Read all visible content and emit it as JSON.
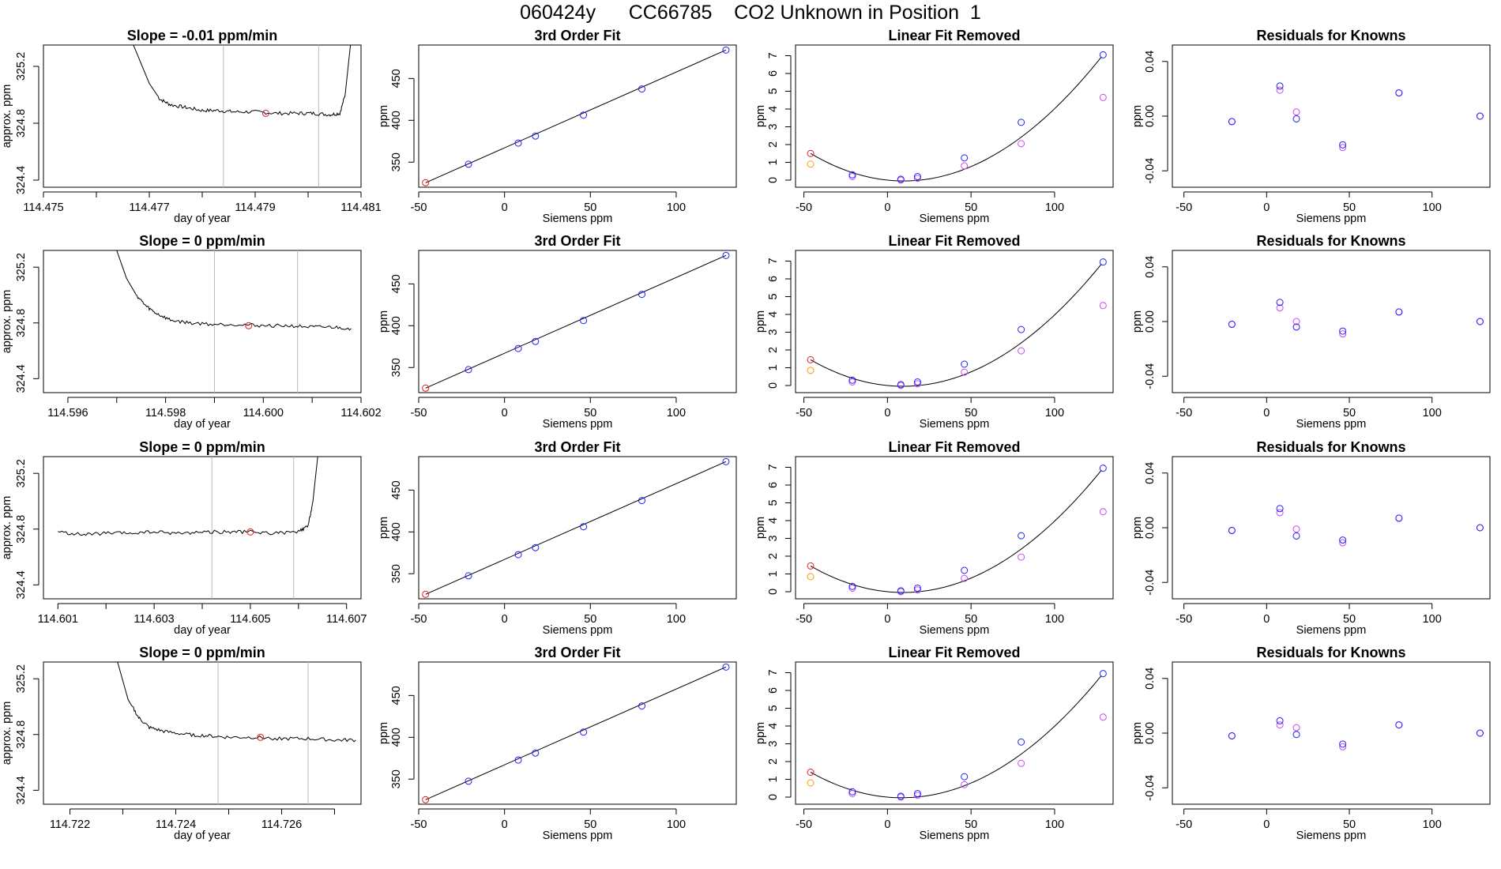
{
  "figure_title": "060424y      CC66785    CO2 Unknown in Position  1",
  "colors": {
    "line": "#000000",
    "unknown_point": "#e31a1c",
    "known_point": "#1f1fff",
    "raw_point": "#cc44ff",
    "flag_point": "#ff9900",
    "window_line": "#bbbbbb",
    "background": "#ffffff"
  },
  "chart_data": [
    {
      "type": "line",
      "row": 0,
      "col": 0,
      "title": "Slope =  -0.01  ppm/min",
      "xlabel": "day of year",
      "ylabel": "approx. ppm",
      "xlim": [
        114.475,
        114.481
      ],
      "ylim": [
        324.35,
        325.35
      ],
      "xticks": [
        114.475,
        114.476,
        114.477,
        114.478,
        114.479,
        114.48,
        114.481
      ],
      "xtick_labels": [
        "114.475",
        "",
        "114.477",
        "",
        "114.479",
        "",
        "114.481"
      ],
      "yticks": [
        324.4,
        324.8,
        325.2
      ],
      "ytick_labels": [
        "324.4",
        "324.8",
        "325.2"
      ],
      "x": [
        114.4767,
        114.477,
        114.4772,
        114.4774,
        114.4777,
        114.478,
        114.4783,
        114.4786,
        114.479,
        114.4794,
        114.4798,
        114.4801,
        114.4804,
        114.4806,
        114.4807,
        114.4808
      ],
      "y": [
        325.35,
        325.08,
        324.97,
        324.93,
        324.91,
        324.89,
        324.89,
        324.88,
        324.88,
        324.87,
        324.87,
        324.87,
        324.86,
        324.87,
        325.0,
        325.35
      ],
      "window_lines": [
        114.4784,
        114.4802
      ],
      "marker": {
        "x": 114.4792,
        "y": 324.87
      }
    },
    {
      "type": "scatter",
      "row": 0,
      "col": 1,
      "title": "3rd Order Fit",
      "xlabel": "Siemens ppm",
      "ylabel": "ppm",
      "xlim": [
        -50,
        135
      ],
      "ylim": [
        320,
        490
      ],
      "xticks": [
        -50,
        0,
        50,
        100
      ],
      "yticks": [
        350,
        400,
        450
      ],
      "known_points": [
        [
          -21,
          347.5
        ],
        [
          8,
          372.8
        ],
        [
          18,
          381.2
        ],
        [
          46,
          406.2
        ],
        [
          80,
          437.5
        ],
        [
          129,
          484.0
        ]
      ],
      "unknown_point": [
        -46,
        325.4
      ]
    },
    {
      "type": "scatter",
      "row": 0,
      "col": 2,
      "title": "Linear Fit Removed",
      "xlabel": "Siemens ppm",
      "ylabel": "ppm",
      "xlim": [
        -55,
        135
      ],
      "ylim": [
        -0.4,
        7.6
      ],
      "xticks": [
        -50,
        0,
        50,
        100
      ],
      "yticks": [
        0,
        1,
        2,
        3,
        4,
        5,
        6,
        7
      ],
      "curve_peak": 7.05,
      "known_points": [
        [
          -21,
          0.3
        ],
        [
          8,
          0.05
        ],
        [
          18,
          0.2
        ],
        [
          46,
          1.25
        ],
        [
          80,
          3.25
        ],
        [
          129,
          7.05
        ]
      ],
      "raw_points": [
        [
          -21,
          0.2
        ],
        [
          8,
          0.0
        ],
        [
          18,
          0.1
        ],
        [
          46,
          0.8
        ],
        [
          80,
          2.05
        ],
        [
          129,
          4.65
        ]
      ],
      "unknown_point": [
        -46,
        1.5
      ],
      "flag_point": [
        -46,
        0.9
      ]
    },
    {
      "type": "scatter",
      "row": 0,
      "col": 3,
      "title": "Residuals for Knowns",
      "xlabel": "Siemens ppm",
      "ylabel": "ppm",
      "xlim": [
        -57,
        135
      ],
      "ylim": [
        -0.052,
        0.052
      ],
      "xticks": [
        -50,
        0,
        50,
        100
      ],
      "yticks": [
        -0.04,
        0.0,
        0.04
      ],
      "ytick_labels": [
        "-0.04",
        "0.00",
        "0.04"
      ],
      "known_points": [
        [
          -21,
          -0.004
        ],
        [
          8,
          0.022
        ],
        [
          18,
          -0.002
        ],
        [
          46,
          -0.021
        ],
        [
          80,
          0.017
        ],
        [
          129,
          0.0
        ]
      ],
      "raw_points": [
        [
          -21,
          -0.004
        ],
        [
          8,
          0.019
        ],
        [
          18,
          0.003
        ],
        [
          46,
          -0.023
        ],
        [
          80,
          0.017
        ],
        [
          129,
          0.0
        ]
      ]
    },
    {
      "type": "line",
      "row": 1,
      "col": 0,
      "title": "Slope =  0  ppm/min",
      "xlabel": "day of year",
      "ylabel": "approx. ppm",
      "xlim": [
        114.5955,
        114.602
      ],
      "ylim": [
        324.3,
        325.32
      ],
      "xticks": [
        114.596,
        114.597,
        114.598,
        114.599,
        114.6,
        114.601,
        114.602
      ],
      "xtick_labels": [
        "114.596",
        "",
        "114.598",
        "",
        "114.600",
        "",
        "114.602"
      ],
      "yticks": [
        324.4,
        324.8,
        325.2
      ],
      "ytick_labels": [
        "324.4",
        "324.8",
        "325.2"
      ],
      "x": [
        114.597,
        114.5972,
        114.5974,
        114.5976,
        114.5978,
        114.5981,
        114.5985,
        114.599,
        114.5995,
        114.6,
        114.6005,
        114.601,
        114.6014,
        114.6018
      ],
      "y": [
        325.32,
        325.12,
        325.0,
        324.92,
        324.87,
        324.82,
        324.8,
        324.79,
        324.79,
        324.78,
        324.78,
        324.77,
        324.77,
        324.76
      ],
      "window_lines": [
        114.599,
        114.6007
      ],
      "marker": {
        "x": 114.5997,
        "y": 324.78
      }
    },
    {
      "type": "scatter",
      "row": 1,
      "col": 1,
      "title": "3rd Order Fit",
      "xlabel": "Siemens ppm",
      "ylabel": "ppm",
      "xlim": [
        -50,
        135
      ],
      "ylim": [
        320,
        490
      ],
      "xticks": [
        -50,
        0,
        50,
        100
      ],
      "yticks": [
        350,
        400,
        450
      ],
      "known_points": [
        [
          -21,
          347.5
        ],
        [
          8,
          372.8
        ],
        [
          18,
          381.2
        ],
        [
          46,
          406.2
        ],
        [
          80,
          437.5
        ],
        [
          129,
          484.0
        ]
      ],
      "unknown_point": [
        -46,
        325.4
      ]
    },
    {
      "type": "scatter",
      "row": 1,
      "col": 2,
      "title": "Linear Fit Removed",
      "xlabel": "Siemens ppm",
      "ylabel": "ppm",
      "xlim": [
        -55,
        135
      ],
      "ylim": [
        -0.4,
        7.6
      ],
      "xticks": [
        -50,
        0,
        50,
        100
      ],
      "yticks": [
        0,
        1,
        2,
        3,
        4,
        5,
        6,
        7
      ],
      "curve_peak": 6.95,
      "known_points": [
        [
          -21,
          0.3
        ],
        [
          8,
          0.05
        ],
        [
          18,
          0.2
        ],
        [
          46,
          1.2
        ],
        [
          80,
          3.15
        ],
        [
          129,
          6.95
        ]
      ],
      "raw_points": [
        [
          -21,
          0.2
        ],
        [
          8,
          0.0
        ],
        [
          18,
          0.1
        ],
        [
          46,
          0.75
        ],
        [
          80,
          1.95
        ],
        [
          129,
          4.5
        ]
      ],
      "unknown_point": [
        -46,
        1.45
      ],
      "flag_point": [
        -46,
        0.85
      ]
    },
    {
      "type": "scatter",
      "row": 1,
      "col": 3,
      "title": "Residuals for Knowns",
      "xlabel": "Siemens ppm",
      "ylabel": "ppm",
      "xlim": [
        -57,
        135
      ],
      "ylim": [
        -0.052,
        0.052
      ],
      "xticks": [
        -50,
        0,
        50,
        100
      ],
      "yticks": [
        -0.04,
        0.0,
        0.04
      ],
      "ytick_labels": [
        "-0.04",
        "0.00",
        "0.04"
      ],
      "known_points": [
        [
          -21,
          -0.002
        ],
        [
          8,
          0.014
        ],
        [
          18,
          -0.004
        ],
        [
          46,
          -0.007
        ],
        [
          80,
          0.007
        ],
        [
          129,
          0.0
        ]
      ],
      "raw_points": [
        [
          -21,
          -0.002
        ],
        [
          8,
          0.01
        ],
        [
          18,
          0.0
        ],
        [
          46,
          -0.009
        ],
        [
          80,
          0.007
        ],
        [
          129,
          0.0
        ]
      ]
    },
    {
      "type": "line",
      "row": 2,
      "col": 0,
      "title": "Slope =  0  ppm/min",
      "xlabel": "day of year",
      "ylabel": "approx. ppm",
      "xlim": [
        114.6007,
        114.6073
      ],
      "ylim": [
        324.3,
        325.32
      ],
      "xticks": [
        114.601,
        114.602,
        114.603,
        114.604,
        114.605,
        114.606,
        114.607
      ],
      "xtick_labels": [
        "114.601",
        "",
        "114.603",
        "",
        "114.605",
        "",
        "114.607"
      ],
      "yticks": [
        324.4,
        324.8,
        325.2
      ],
      "ytick_labels": [
        "324.4",
        "324.8",
        "325.2"
      ],
      "x": [
        114.601,
        114.6015,
        114.602,
        114.6025,
        114.603,
        114.6035,
        114.604,
        114.6045,
        114.605,
        114.6055,
        114.606,
        114.6062,
        114.6063,
        114.6064
      ],
      "y": [
        324.78,
        324.76,
        324.77,
        324.77,
        324.78,
        324.77,
        324.78,
        324.78,
        324.78,
        324.77,
        324.78,
        324.82,
        325.0,
        325.32
      ],
      "window_lines": [
        114.6042,
        114.6059
      ],
      "marker": {
        "x": 114.605,
        "y": 324.78
      }
    },
    {
      "type": "scatter",
      "row": 2,
      "col": 1,
      "title": "3rd Order Fit",
      "xlabel": "Siemens ppm",
      "ylabel": "ppm",
      "xlim": [
        -50,
        135
      ],
      "ylim": [
        320,
        490
      ],
      "xticks": [
        -50,
        0,
        50,
        100
      ],
      "yticks": [
        350,
        400,
        450
      ],
      "known_points": [
        [
          -21,
          347.5
        ],
        [
          8,
          372.8
        ],
        [
          18,
          381.2
        ],
        [
          46,
          406.2
        ],
        [
          80,
          437.5
        ],
        [
          129,
          484.0
        ]
      ],
      "unknown_point": [
        -46,
        325.4
      ]
    },
    {
      "type": "scatter",
      "row": 2,
      "col": 2,
      "title": "Linear Fit Removed",
      "xlabel": "Siemens ppm",
      "ylabel": "ppm",
      "xlim": [
        -55,
        135
      ],
      "ylim": [
        -0.4,
        7.6
      ],
      "xticks": [
        -50,
        0,
        50,
        100
      ],
      "yticks": [
        0,
        1,
        2,
        3,
        4,
        5,
        6,
        7
      ],
      "curve_peak": 6.95,
      "known_points": [
        [
          -21,
          0.3
        ],
        [
          8,
          0.05
        ],
        [
          18,
          0.2
        ],
        [
          46,
          1.2
        ],
        [
          80,
          3.15
        ],
        [
          129,
          6.95
        ]
      ],
      "raw_points": [
        [
          -21,
          0.2
        ],
        [
          8,
          0.0
        ],
        [
          18,
          0.1
        ],
        [
          46,
          0.75
        ],
        [
          80,
          1.95
        ],
        [
          129,
          4.5
        ]
      ],
      "unknown_point": [
        -46,
        1.45
      ],
      "flag_point": [
        -46,
        0.85
      ]
    },
    {
      "type": "scatter",
      "row": 2,
      "col": 3,
      "title": "Residuals for Knowns",
      "xlabel": "Siemens ppm",
      "ylabel": "ppm",
      "xlim": [
        -57,
        135
      ],
      "ylim": [
        -0.052,
        0.052
      ],
      "xticks": [
        -50,
        0,
        50,
        100
      ],
      "yticks": [
        -0.04,
        0.0,
        0.04
      ],
      "ytick_labels": [
        "-0.04",
        "0.00",
        "0.04"
      ],
      "known_points": [
        [
          -21,
          -0.002
        ],
        [
          8,
          0.014
        ],
        [
          18,
          -0.006
        ],
        [
          46,
          -0.009
        ],
        [
          80,
          0.007
        ],
        [
          129,
          0.0
        ]
      ],
      "raw_points": [
        [
          -21,
          -0.002
        ],
        [
          8,
          0.011
        ],
        [
          18,
          -0.001
        ],
        [
          46,
          -0.011
        ],
        [
          80,
          0.007
        ],
        [
          129,
          0.0
        ]
      ]
    },
    {
      "type": "line",
      "row": 3,
      "col": 0,
      "title": "Slope =  0  ppm/min",
      "xlabel": "day of year",
      "ylabel": "approx. ppm",
      "xlim": [
        114.7215,
        114.7275
      ],
      "ylim": [
        324.3,
        325.32
      ],
      "xticks": [
        114.722,
        114.723,
        114.724,
        114.725,
        114.726,
        114.727
      ],
      "xtick_labels": [
        "114.722",
        "",
        "114.724",
        "",
        "114.726",
        ""
      ],
      "yticks": [
        324.4,
        324.8,
        325.2
      ],
      "ytick_labels": [
        "324.4",
        "324.8",
        "325.2"
      ],
      "x": [
        114.7229,
        114.7231,
        114.7233,
        114.7235,
        114.7238,
        114.7242,
        114.7246,
        114.725,
        114.7255,
        114.726,
        114.7265,
        114.727,
        114.7274
      ],
      "y": [
        325.32,
        325.05,
        324.92,
        324.85,
        324.82,
        324.8,
        324.79,
        324.78,
        324.78,
        324.77,
        324.77,
        324.76,
        324.76
      ],
      "window_lines": [
        114.7248,
        114.7265
      ],
      "marker": {
        "x": 114.7256,
        "y": 324.78
      }
    },
    {
      "type": "scatter",
      "row": 3,
      "col": 1,
      "title": "3rd Order Fit",
      "xlabel": "Siemens ppm",
      "ylabel": "ppm",
      "xlim": [
        -50,
        135
      ],
      "ylim": [
        320,
        490
      ],
      "xticks": [
        -50,
        0,
        50,
        100
      ],
      "yticks": [
        350,
        400,
        450
      ],
      "known_points": [
        [
          -21,
          347.5
        ],
        [
          8,
          372.8
        ],
        [
          18,
          381.2
        ],
        [
          46,
          406.2
        ],
        [
          80,
          437.5
        ],
        [
          129,
          484.0
        ]
      ],
      "unknown_point": [
        -46,
        325.4
      ]
    },
    {
      "type": "scatter",
      "row": 3,
      "col": 2,
      "title": "Linear Fit Removed",
      "xlabel": "Siemens ppm",
      "ylabel": "ppm",
      "xlim": [
        -55,
        135
      ],
      "ylim": [
        -0.4,
        7.6
      ],
      "xticks": [
        -50,
        0,
        50,
        100
      ],
      "yticks": [
        0,
        1,
        2,
        3,
        4,
        5,
        6,
        7
      ],
      "curve_peak": 6.95,
      "known_points": [
        [
          -21,
          0.3
        ],
        [
          8,
          0.05
        ],
        [
          18,
          0.2
        ],
        [
          46,
          1.15
        ],
        [
          80,
          3.1
        ],
        [
          129,
          6.95
        ]
      ],
      "raw_points": [
        [
          -21,
          0.2
        ],
        [
          8,
          0.0
        ],
        [
          18,
          0.1
        ],
        [
          46,
          0.7
        ],
        [
          80,
          1.9
        ],
        [
          129,
          4.5
        ]
      ],
      "unknown_point": [
        -46,
        1.4
      ],
      "flag_point": [
        -46,
        0.8
      ]
    },
    {
      "type": "scatter",
      "row": 3,
      "col": 3,
      "title": "Residuals for Knowns",
      "xlabel": "Siemens ppm",
      "ylabel": "ppm",
      "xlim": [
        -57,
        135
      ],
      "ylim": [
        -0.052,
        0.052
      ],
      "xticks": [
        -50,
        0,
        50,
        100
      ],
      "yticks": [
        -0.04,
        0.0,
        0.04
      ],
      "ytick_labels": [
        "-0.04",
        "0.00",
        "0.04"
      ],
      "known_points": [
        [
          -21,
          -0.002
        ],
        [
          8,
          0.009
        ],
        [
          18,
          -0.001
        ],
        [
          46,
          -0.008
        ],
        [
          80,
          0.006
        ],
        [
          129,
          0.0
        ]
      ],
      "raw_points": [
        [
          -21,
          -0.002
        ],
        [
          8,
          0.006
        ],
        [
          18,
          0.004
        ],
        [
          46,
          -0.01
        ],
        [
          80,
          0.006
        ],
        [
          129,
          0.0
        ]
      ]
    }
  ]
}
